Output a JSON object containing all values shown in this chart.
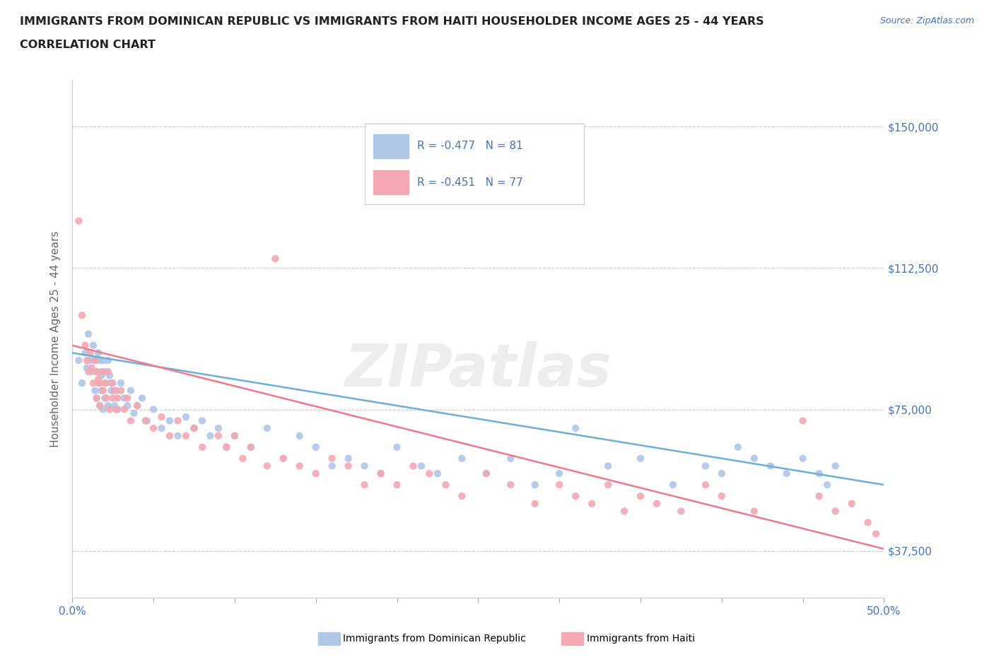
{
  "title_line1": "IMMIGRANTS FROM DOMINICAN REPUBLIC VS IMMIGRANTS FROM HAITI HOUSEHOLDER INCOME AGES 25 - 44 YEARS",
  "title_line2": "CORRELATION CHART",
  "source_text": "Source: ZipAtlas.com",
  "ylabel": "Householder Income Ages 25 - 44 years",
  "xlim": [
    0.0,
    0.5
  ],
  "ylim": [
    25000,
    162500
  ],
  "yticks": [
    37500,
    75000,
    112500,
    150000
  ],
  "ytick_labels": [
    "$37,500",
    "$75,000",
    "$112,500",
    "$150,000"
  ],
  "xticks": [
    0.0,
    0.05,
    0.1,
    0.15,
    0.2,
    0.25,
    0.3,
    0.35,
    0.4,
    0.45,
    0.5
  ],
  "color_dr": "#aec6e8",
  "color_haiti": "#f4a7b0",
  "line_color_dr": "#6baed6",
  "line_color_haiti": "#f4788a",
  "r_dr": -0.477,
  "n_dr": 81,
  "r_haiti": -0.451,
  "n_haiti": 77,
  "legend_label_dr": "Immigrants from Dominican Republic",
  "legend_label_haiti": "Immigrants from Haiti",
  "background_color": "#ffffff",
  "watermark": "ZIPatlas",
  "title_color": "#222222",
  "axis_label_color": "#666666",
  "tick_color_y": "#4472c4",
  "tick_color_x": "#4472c4",
  "grid_color": "#cccccc",
  "dr_x": [
    0.004,
    0.006,
    0.008,
    0.009,
    0.01,
    0.011,
    0.012,
    0.013,
    0.014,
    0.014,
    0.015,
    0.015,
    0.016,
    0.016,
    0.017,
    0.017,
    0.018,
    0.018,
    0.019,
    0.019,
    0.02,
    0.02,
    0.021,
    0.022,
    0.022,
    0.023,
    0.024,
    0.025,
    0.026,
    0.027,
    0.028,
    0.03,
    0.032,
    0.034,
    0.036,
    0.038,
    0.04,
    0.043,
    0.046,
    0.05,
    0.055,
    0.06,
    0.065,
    0.07,
    0.075,
    0.08,
    0.085,
    0.09,
    0.095,
    0.1,
    0.11,
    0.12,
    0.13,
    0.14,
    0.15,
    0.16,
    0.17,
    0.18,
    0.19,
    0.2,
    0.215,
    0.225,
    0.24,
    0.255,
    0.27,
    0.285,
    0.3,
    0.31,
    0.33,
    0.35,
    0.37,
    0.39,
    0.4,
    0.41,
    0.42,
    0.43,
    0.44,
    0.45,
    0.46,
    0.465,
    0.47
  ],
  "dr_y": [
    88000,
    82000,
    90000,
    86000,
    95000,
    88000,
    85000,
    92000,
    80000,
    88000,
    85000,
    78000,
    90000,
    82000,
    88000,
    76000,
    84000,
    80000,
    88000,
    75000,
    85000,
    78000,
    82000,
    88000,
    76000,
    84000,
    80000,
    82000,
    76000,
    80000,
    75000,
    82000,
    78000,
    76000,
    80000,
    74000,
    76000,
    78000,
    72000,
    75000,
    70000,
    72000,
    68000,
    73000,
    70000,
    72000,
    68000,
    70000,
    65000,
    68000,
    65000,
    70000,
    62000,
    68000,
    65000,
    60000,
    62000,
    60000,
    58000,
    65000,
    60000,
    58000,
    62000,
    58000,
    62000,
    55000,
    58000,
    70000,
    60000,
    62000,
    55000,
    60000,
    58000,
    65000,
    62000,
    60000,
    58000,
    62000,
    58000,
    55000,
    60000
  ],
  "haiti_x": [
    0.004,
    0.006,
    0.008,
    0.009,
    0.01,
    0.011,
    0.012,
    0.013,
    0.014,
    0.015,
    0.015,
    0.016,
    0.017,
    0.017,
    0.018,
    0.019,
    0.02,
    0.021,
    0.022,
    0.023,
    0.024,
    0.025,
    0.026,
    0.027,
    0.028,
    0.03,
    0.032,
    0.034,
    0.036,
    0.04,
    0.045,
    0.05,
    0.055,
    0.06,
    0.065,
    0.07,
    0.075,
    0.08,
    0.09,
    0.095,
    0.1,
    0.105,
    0.11,
    0.12,
    0.125,
    0.13,
    0.14,
    0.15,
    0.16,
    0.17,
    0.18,
    0.19,
    0.2,
    0.21,
    0.22,
    0.23,
    0.24,
    0.255,
    0.27,
    0.285,
    0.3,
    0.31,
    0.32,
    0.33,
    0.34,
    0.35,
    0.36,
    0.375,
    0.39,
    0.4,
    0.42,
    0.45,
    0.46,
    0.47,
    0.48,
    0.49,
    0.495
  ],
  "haiti_y": [
    125000,
    100000,
    92000,
    88000,
    85000,
    90000,
    86000,
    82000,
    88000,
    85000,
    78000,
    83000,
    82000,
    76000,
    85000,
    80000,
    82000,
    78000,
    85000,
    75000,
    82000,
    78000,
    80000,
    75000,
    78000,
    80000,
    75000,
    78000,
    72000,
    76000,
    72000,
    70000,
    73000,
    68000,
    72000,
    68000,
    70000,
    65000,
    68000,
    65000,
    68000,
    62000,
    65000,
    60000,
    115000,
    62000,
    60000,
    58000,
    62000,
    60000,
    55000,
    58000,
    55000,
    60000,
    58000,
    55000,
    52000,
    58000,
    55000,
    50000,
    55000,
    52000,
    50000,
    55000,
    48000,
    52000,
    50000,
    48000,
    55000,
    52000,
    48000,
    72000,
    52000,
    48000,
    50000,
    45000,
    42000
  ]
}
